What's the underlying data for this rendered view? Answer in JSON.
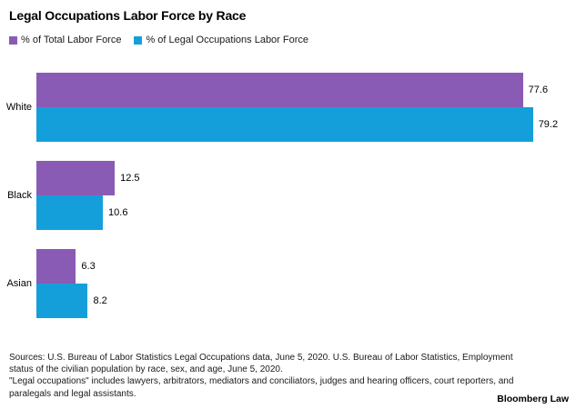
{
  "title": "Legal Occupations Labor Force by Race",
  "colors": {
    "total_labor_force": "#8a5bb4",
    "legal_occupations": "#149fdb",
    "background": "#ffffff",
    "text": "#000000"
  },
  "legend": {
    "items": [
      {
        "label": "% of Total Labor Force",
        "color": "#8a5bb4"
      },
      {
        "label": "% of Legal Occupations Labor Force",
        "color": "#149fdb"
      }
    ]
  },
  "chart_data": {
    "type": "bar",
    "orientation": "horizontal",
    "title": "Legal Occupations Labor Force by Race",
    "categories": [
      "White",
      "Black",
      "Asian"
    ],
    "series": [
      {
        "name": "% of Total Labor Force",
        "color": "#8a5bb4",
        "values": [
          77.6,
          12.5,
          6.3
        ]
      },
      {
        "name": "% of Legal Occupations Labor Force",
        "color": "#149fdb",
        "values": [
          79.2,
          10.6,
          8.2
        ]
      }
    ],
    "value_labels": [
      "77.6",
      "79.2",
      "12.5",
      "10.6",
      "6.3",
      "8.2"
    ],
    "xlabel": "",
    "ylabel": "",
    "xlim": [
      0,
      80
    ],
    "grid": false,
    "legend_position": "top-left"
  },
  "footer": {
    "source_lines": [
      "Sources: U.S. Bureau of Labor Statistics Legal Occupations data, June 5, 2020. U.S. Bureau of Labor Statistics, Employment",
      "status of the civilian population by race, sex, and age, June 5, 2020.",
      "\"Legal occupations\" includes lawyers, arbitrators, mediators and conciliators, judges and hearing officers, court reporters, and",
      "paralegals and legal assistants."
    ],
    "brand": "Bloomberg Law"
  }
}
